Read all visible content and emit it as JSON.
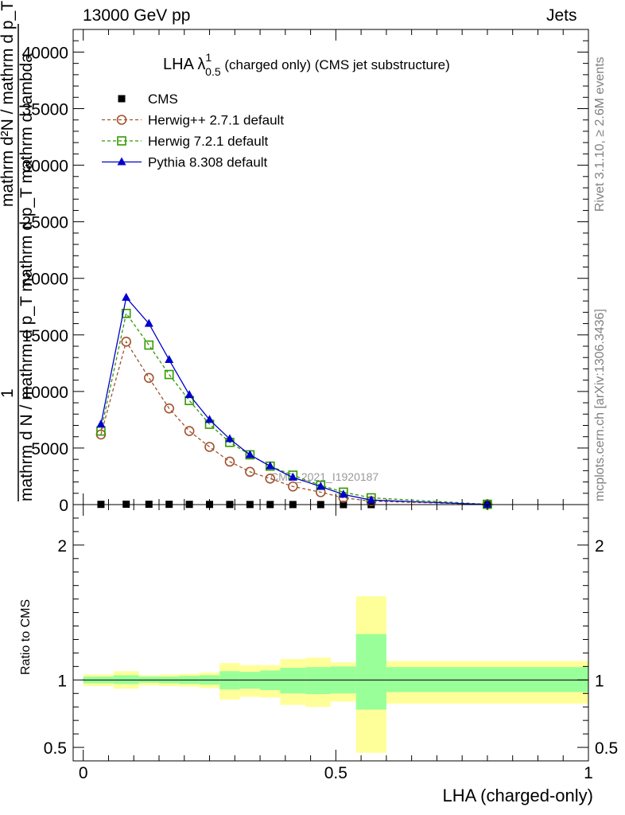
{
  "header": {
    "left": "13000 GeV pp",
    "right": "Jets"
  },
  "side_labels": {
    "rivet": "Rivet 3.1.10, ≥ 2.6M events",
    "mcplots": "mcplots.cern.ch [arXiv:1306.3436]"
  },
  "chart_data": [
    {
      "type": "line",
      "title_main": "LHA λ",
      "title_sup": "1",
      "title_sub": "0.5",
      "title_rest": " (charged only) (CMS jet substructure)",
      "ylabel_lines": [
        "mathrm d²N",
        "mathrm d p",
        "T",
        "mathrm d lambda",
        "1",
        "mathrm d N  mathrm d p",
        "T",
        "mathrm d p",
        "T",
        "mathrm d lambda"
      ],
      "ylabel_num": "1",
      "ylabel_den": "mathrm d N / mathrm d p_T mathrm d p_T mathrm d lambda",
      "ylabel_top": "mathrm d²N / mathrm d p_T mathrm d lambda",
      "xlim": [
        -0.02,
        1.0
      ],
      "ylim": [
        0,
        42000
      ],
      "yticks": [
        0,
        5000,
        10000,
        15000,
        20000,
        25000,
        30000,
        35000,
        40000
      ],
      "ytick_labels": [
        "0",
        "5000",
        "10000",
        "15000",
        "20000",
        "25000",
        "30000",
        "35000",
        "40000"
      ],
      "watermark": "CMS_2021_I1920187",
      "legend_placement": "top-left",
      "series": [
        {
          "name": "CMS",
          "color": "#000000",
          "marker": "square-filled",
          "line": "none",
          "x": [
            0.035,
            0.085,
            0.13,
            0.17,
            0.21,
            0.25,
            0.29,
            0.33,
            0.37,
            0.415,
            0.47,
            0.515,
            0.57,
            0.8
          ],
          "y": [
            20,
            35,
            30,
            25,
            20,
            15,
            12,
            9,
            7,
            5,
            3,
            2,
            1,
            0.2
          ]
        },
        {
          "name": "Herwig++ 2.7.1 default",
          "color": "#a0522d",
          "marker": "circle-open",
          "line": "dashed",
          "x": [
            0.035,
            0.085,
            0.13,
            0.17,
            0.21,
            0.25,
            0.29,
            0.33,
            0.37,
            0.415,
            0.47,
            0.515,
            0.57,
            0.8
          ],
          "y": [
            6200,
            14400,
            11200,
            8500,
            6500,
            5100,
            3800,
            2900,
            2300,
            1600,
            1100,
            600,
            300,
            20
          ]
        },
        {
          "name": "Herwig 7.2.1 default",
          "color": "#339900",
          "marker": "square-open",
          "line": "dashed",
          "x": [
            0.035,
            0.085,
            0.13,
            0.17,
            0.21,
            0.25,
            0.29,
            0.33,
            0.37,
            0.415,
            0.47,
            0.515,
            0.57,
            0.8
          ],
          "y": [
            6500,
            16900,
            14100,
            11500,
            9200,
            7100,
            5500,
            4400,
            3400,
            2600,
            1700,
            1100,
            600,
            30
          ]
        },
        {
          "name": "Pythia 8.308 default",
          "color": "#0000cc",
          "marker": "triangle-filled",
          "line": "solid",
          "x": [
            0.035,
            0.085,
            0.13,
            0.17,
            0.21,
            0.25,
            0.29,
            0.33,
            0.37,
            0.415,
            0.47,
            0.515,
            0.57,
            0.8
          ],
          "y": [
            7100,
            18300,
            16000,
            12800,
            9700,
            7500,
            5800,
            4400,
            3400,
            2400,
            1600,
            900,
            400,
            10
          ]
        }
      ]
    },
    {
      "type": "area",
      "ylabel": "Ratio to CMS",
      "xlabel": "LHA (charged-only)",
      "xlim": [
        -0.02,
        1.0
      ],
      "ylim": [
        0.4,
        2.3
      ],
      "yticks": [
        0.5,
        1,
        2
      ],
      "ytick_labels": [
        "0.5",
        "1",
        "2"
      ],
      "xticks": [
        0,
        0.5,
        1
      ],
      "xtick_labels": [
        "0",
        "0.5",
        "1"
      ],
      "reference_line": 1.0,
      "bands": [
        {
          "x0": 0.0,
          "x1": 0.06,
          "inner": [
            0.975,
            1.025
          ],
          "outer": [
            0.955,
            1.04
          ]
        },
        {
          "x0": 0.06,
          "x1": 0.11,
          "inner": [
            0.97,
            1.035
          ],
          "outer": [
            0.935,
            1.065
          ]
        },
        {
          "x0": 0.11,
          "x1": 0.15,
          "inner": [
            0.98,
            1.025
          ],
          "outer": [
            0.96,
            1.035
          ]
        },
        {
          "x0": 0.15,
          "x1": 0.19,
          "inner": [
            0.975,
            1.025
          ],
          "outer": [
            0.955,
            1.04
          ]
        },
        {
          "x0": 0.19,
          "x1": 0.23,
          "inner": [
            0.97,
            1.03
          ],
          "outer": [
            0.95,
            1.045
          ]
        },
        {
          "x0": 0.23,
          "x1": 0.27,
          "inner": [
            0.965,
            1.035
          ],
          "outer": [
            0.94,
            1.055
          ]
        },
        {
          "x0": 0.27,
          "x1": 0.31,
          "inner": [
            0.93,
            1.065
          ],
          "outer": [
            0.855,
            1.125
          ]
        },
        {
          "x0": 0.31,
          "x1": 0.35,
          "inner": [
            0.935,
            1.06
          ],
          "outer": [
            0.875,
            1.11
          ]
        },
        {
          "x0": 0.35,
          "x1": 0.39,
          "inner": [
            0.925,
            1.07
          ],
          "outer": [
            0.87,
            1.11
          ]
        },
        {
          "x0": 0.39,
          "x1": 0.44,
          "inner": [
            0.9,
            1.09
          ],
          "outer": [
            0.815,
            1.155
          ]
        },
        {
          "x0": 0.44,
          "x1": 0.49,
          "inner": [
            0.895,
            1.095
          ],
          "outer": [
            0.8,
            1.165
          ]
        },
        {
          "x0": 0.49,
          "x1": 0.54,
          "inner": [
            0.9,
            1.1
          ],
          "outer": [
            0.84,
            1.13
          ]
        },
        {
          "x0": 0.54,
          "x1": 0.6,
          "inner": [
            0.78,
            1.34
          ],
          "outer": [
            0.46,
            1.62
          ]
        },
        {
          "x0": 0.6,
          "x1": 1.0,
          "inner": [
            0.91,
            1.095
          ],
          "outer": [
            0.825,
            1.14
          ]
        }
      ],
      "inner_color": "#99ff99",
      "outer_color": "#ffff99"
    }
  ]
}
